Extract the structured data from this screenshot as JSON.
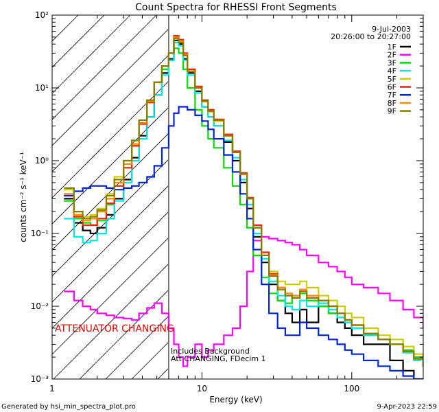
{
  "chart_data": {
    "type": "line",
    "title": "Count Spectra for RHESSI Front Segments",
    "date": "9-Jul-2003",
    "time_range": "20:26:00 to 20:27:00",
    "xlabel": "Energy (keV)",
    "ylabel": "counts cm⁻² s⁻¹ keV⁻¹",
    "x_scale": "log",
    "y_scale": "log",
    "xlim": [
      1,
      300
    ],
    "ylim": [
      0.001,
      100
    ],
    "x_ticks": [
      {
        "value": 1,
        "label": "1"
      },
      {
        "value": 10,
        "label": "10"
      },
      {
        "value": 100,
        "label": "100"
      }
    ],
    "y_ticks": [
      {
        "value": 0.001,
        "label": "10⁻³"
      },
      {
        "value": 0.01,
        "label": "10⁻²"
      },
      {
        "value": 0.1,
        "label": "10⁻¹"
      },
      {
        "value": 1,
        "label": "10⁰"
      },
      {
        "value": 10,
        "label": "10¹"
      },
      {
        "value": 100,
        "label": "10²"
      }
    ],
    "attenuator_edge_keV": 6,
    "annotations": {
      "attenuator": "ATTENUATOR CHANGING",
      "background_line1": "Includes Background",
      "background_line2": "Att CHANGING, FDecim 1"
    },
    "legend_position": "top-right",
    "series": [
      {
        "name": "1F",
        "color": "#000000",
        "x": [
          1.2,
          1.4,
          1.6,
          1.8,
          2,
          2.3,
          2.6,
          3,
          3.4,
          3.8,
          4.3,
          4.8,
          5.4,
          6,
          6.5,
          7,
          7.5,
          8,
          9,
          10,
          11,
          12,
          14,
          16,
          18,
          20,
          22,
          25,
          28,
          32,
          36,
          40,
          45,
          50,
          60,
          70,
          80,
          90,
          100,
          120,
          150,
          180,
          220,
          260
        ],
        "y": [
          0.3,
          0.14,
          0.11,
          0.1,
          0.12,
          0.18,
          0.3,
          0.55,
          1.1,
          2.2,
          4,
          8,
          16,
          25,
          45,
          40,
          25,
          16,
          9,
          5.5,
          4,
          3,
          1.8,
          1,
          0.5,
          0.22,
          0.09,
          0.04,
          0.02,
          0.012,
          0.008,
          0.006,
          0.009,
          0.006,
          0.01,
          0.008,
          0.006,
          0.005,
          0.004,
          0.003,
          0.003,
          0.0018,
          0.0013,
          0.001
        ]
      },
      {
        "name": "2F",
        "color": "#ff00ff",
        "x": [
          1.2,
          1.4,
          1.6,
          1.8,
          2,
          2.3,
          2.6,
          3,
          3.4,
          3.8,
          4.3,
          4.8,
          5.4,
          6,
          6.5,
          7,
          7.5,
          8,
          9,
          10,
          11,
          12,
          14,
          16,
          18,
          20,
          22,
          25,
          28,
          32,
          36,
          40,
          45,
          50,
          60,
          70,
          80,
          90,
          100,
          120,
          150,
          180,
          220,
          260,
          300
        ],
        "y": [
          0.016,
          0.012,
          0.01,
          0.009,
          0.008,
          0.0075,
          0.007,
          0.0068,
          0.0065,
          0.008,
          0.0095,
          0.011,
          0.008,
          0.005,
          0.003,
          0.002,
          0.0015,
          0.002,
          0.003,
          0.002,
          0.0025,
          0.003,
          0.004,
          0.005,
          0.01,
          0.03,
          0.08,
          0.09,
          0.085,
          0.08,
          0.075,
          0.07,
          0.06,
          0.05,
          0.04,
          0.035,
          0.03,
          0.025,
          0.02,
          0.018,
          0.015,
          0.012,
          0.009,
          0.007,
          0.005
        ]
      },
      {
        "name": "3F",
        "color": "#00dd00",
        "x": [
          1.2,
          1.4,
          1.6,
          1.8,
          2,
          2.3,
          2.6,
          3,
          3.4,
          3.8,
          4.3,
          4.8,
          5.4,
          6,
          6.5,
          7,
          7.5,
          8,
          9,
          10,
          11,
          12,
          14,
          16,
          18,
          20,
          22,
          25,
          28,
          32,
          36,
          40,
          45,
          50,
          60,
          70,
          80,
          90,
          100,
          120,
          150,
          180,
          220,
          260,
          300
        ],
        "y": [
          0.28,
          0.16,
          0.14,
          0.13,
          0.15,
          0.25,
          0.45,
          0.8,
          1.6,
          3.2,
          6.5,
          12,
          18,
          24,
          35,
          30,
          18,
          10,
          5,
          3,
          2,
          1.5,
          0.8,
          0.45,
          0.25,
          0.12,
          0.05,
          0.025,
          0.015,
          0.012,
          0.011,
          0.013,
          0.015,
          0.012,
          0.01,
          0.008,
          0.007,
          0.006,
          0.005,
          0.004,
          0.0035,
          0.003,
          0.0025,
          0.002,
          0.0015
        ]
      },
      {
        "name": "4F",
        "color": "#00e5e5",
        "x": [
          1.2,
          1.4,
          1.6,
          1.8,
          2,
          2.3,
          2.6,
          3,
          3.4,
          3.8,
          4.3,
          4.8,
          5.4,
          6,
          6.5,
          7,
          7.5,
          8,
          9,
          10,
          11,
          12,
          14,
          16,
          18,
          20,
          22,
          25,
          28,
          32,
          36,
          40,
          45,
          50,
          60,
          70,
          80,
          90,
          100,
          120,
          150,
          180,
          220,
          260
        ],
        "y": [
          0.16,
          0.09,
          0.075,
          0.08,
          0.1,
          0.16,
          0.28,
          0.5,
          1,
          2,
          4,
          8,
          15,
          24,
          42,
          38,
          24,
          15,
          8.5,
          5.5,
          4,
          3,
          1.9,
          1.1,
          0.55,
          0.25,
          0.1,
          0.045,
          0.022,
          0.014,
          0.01,
          0.009,
          0.012,
          0.01,
          0.011,
          0.009,
          0.007,
          0.006,
          0.005,
          0.004,
          0.0035,
          0.003,
          0.0023,
          0.0018
        ]
      },
      {
        "name": "5F",
        "color": "#cccc00",
        "x": [
          1.2,
          1.4,
          1.6,
          1.8,
          2,
          2.3,
          2.6,
          3,
          3.4,
          3.8,
          4.3,
          4.8,
          5.4,
          6,
          6.5,
          7,
          7.5,
          8,
          9,
          10,
          11,
          12,
          14,
          16,
          18,
          20,
          22,
          25,
          28,
          32,
          36,
          40,
          45,
          50,
          60,
          70,
          80,
          90,
          100,
          120,
          150,
          180,
          220,
          260,
          300
        ],
        "y": [
          0.4,
          0.2,
          0.17,
          0.18,
          0.22,
          0.35,
          0.6,
          1,
          1.9,
          3.6,
          6.8,
          12,
          20,
          30,
          48,
          42,
          28,
          17,
          10,
          6.5,
          4.7,
          3.5,
          2.2,
          1.3,
          0.65,
          0.3,
          0.12,
          0.055,
          0.03,
          0.022,
          0.02,
          0.02,
          0.022,
          0.018,
          0.014,
          0.012,
          0.01,
          0.008,
          0.007,
          0.005,
          0.004,
          0.0035,
          0.0028,
          0.0022,
          0.0018
        ]
      },
      {
        "name": "6F",
        "color": "#ff2000",
        "x": [
          1.2,
          1.4,
          1.6,
          1.8,
          2,
          2.3,
          2.6,
          3,
          3.4,
          3.8,
          4.3,
          4.8,
          5.4,
          6,
          6.5,
          7,
          7.5,
          8,
          9,
          10,
          11,
          12,
          14,
          16,
          18,
          20,
          22,
          25,
          28,
          32,
          36,
          40,
          45,
          50,
          60,
          70,
          80,
          90,
          100,
          120,
          150,
          180,
          220,
          260,
          300
        ],
        "y": [
          0.33,
          0.17,
          0.13,
          0.13,
          0.16,
          0.26,
          0.45,
          0.8,
          1.6,
          3.2,
          6.3,
          12,
          20,
          30,
          52,
          46,
          30,
          18,
          10.5,
          6.8,
          5,
          3.7,
          2.3,
          1.35,
          0.68,
          0.31,
          0.13,
          0.055,
          0.028,
          0.018,
          0.014,
          0.013,
          0.016,
          0.013,
          0.012,
          0.01,
          0.008,
          0.0065,
          0.0055,
          0.0042,
          0.0035,
          0.003,
          0.0024,
          0.0019,
          0.0015
        ]
      },
      {
        "name": "7F",
        "color": "#0022dd",
        "x": [
          1.2,
          1.4,
          1.6,
          1.8,
          2,
          2.3,
          2.6,
          3,
          3.4,
          3.8,
          4.3,
          4.8,
          5.4,
          6,
          6.5,
          7,
          7.5,
          8,
          9,
          10,
          11,
          12,
          14,
          16,
          18,
          20,
          22,
          25,
          28,
          32,
          36,
          40,
          45,
          50,
          60,
          70,
          80,
          90,
          100,
          120,
          150,
          180,
          220,
          260,
          300
        ],
        "y": [
          0.33,
          0.38,
          0.42,
          0.45,
          0.45,
          0.42,
          0.4,
          0.42,
          0.45,
          0.5,
          0.6,
          0.85,
          1.5,
          3,
          4.5,
          5.5,
          5.5,
          5,
          4.2,
          3.5,
          2.7,
          2,
          1.2,
          0.7,
          0.35,
          0.16,
          0.06,
          0.02,
          0.008,
          0.005,
          0.004,
          0.004,
          0.006,
          0.005,
          0.004,
          0.0035,
          0.003,
          0.0025,
          0.0022,
          0.0018,
          0.0015,
          0.0013,
          0.0011,
          0.001,
          0.001
        ]
      },
      {
        "name": "8F",
        "color": "#ff8800",
        "x": [
          1.2,
          1.4,
          1.6,
          1.8,
          2,
          2.3,
          2.6,
          3,
          3.4,
          3.8,
          4.3,
          4.8,
          5.4,
          6,
          6.5,
          7,
          7.5,
          8,
          9,
          10,
          11,
          12,
          14,
          16,
          18,
          20,
          22,
          25,
          28,
          32,
          36,
          40,
          45,
          50,
          60,
          70,
          80,
          90,
          100,
          120,
          150,
          180,
          220,
          260,
          300
        ],
        "y": [
          0.35,
          0.18,
          0.15,
          0.16,
          0.2,
          0.3,
          0.5,
          0.9,
          1.7,
          3.3,
          6.5,
          12,
          20,
          30,
          50,
          44,
          29,
          17,
          10,
          6.5,
          4.8,
          3.6,
          2.2,
          1.3,
          0.65,
          0.3,
          0.12,
          0.05,
          0.027,
          0.018,
          0.015,
          0.014,
          0.017,
          0.014,
          0.012,
          0.01,
          0.008,
          0.0065,
          0.0055,
          0.0042,
          0.0035,
          0.003,
          0.0024,
          0.0019,
          0.0015
        ]
      },
      {
        "name": "9F",
        "color": "#808000",
        "x": [
          1.2,
          1.4,
          1.6,
          1.8,
          2,
          2.3,
          2.6,
          3,
          3.4,
          3.8,
          4.3,
          4.8,
          5.4,
          6,
          6.5,
          7,
          7.5,
          8,
          9,
          10,
          11,
          12,
          14,
          16,
          18,
          20,
          22,
          25,
          28,
          32,
          36,
          40,
          45,
          50,
          60,
          70,
          80,
          90,
          100,
          120,
          150,
          180,
          220,
          260,
          300
        ],
        "y": [
          0.42,
          0.2,
          0.16,
          0.17,
          0.21,
          0.33,
          0.55,
          1,
          1.9,
          3.6,
          6.8,
          12,
          20,
          30,
          48,
          42,
          28,
          17,
          10,
          6.6,
          4.8,
          3.6,
          2.2,
          1.3,
          0.66,
          0.3,
          0.12,
          0.05,
          0.026,
          0.017,
          0.014,
          0.013,
          0.016,
          0.013,
          0.012,
          0.01,
          0.008,
          0.0065,
          0.0055,
          0.0042,
          0.0035,
          0.003,
          0.0024,
          0.0019,
          0.0015
        ]
      }
    ]
  },
  "footer": {
    "generated_by": "Generated by hsi_min_spectra_plot.pro",
    "timestamp": "9-Apr-2023 22:59"
  }
}
